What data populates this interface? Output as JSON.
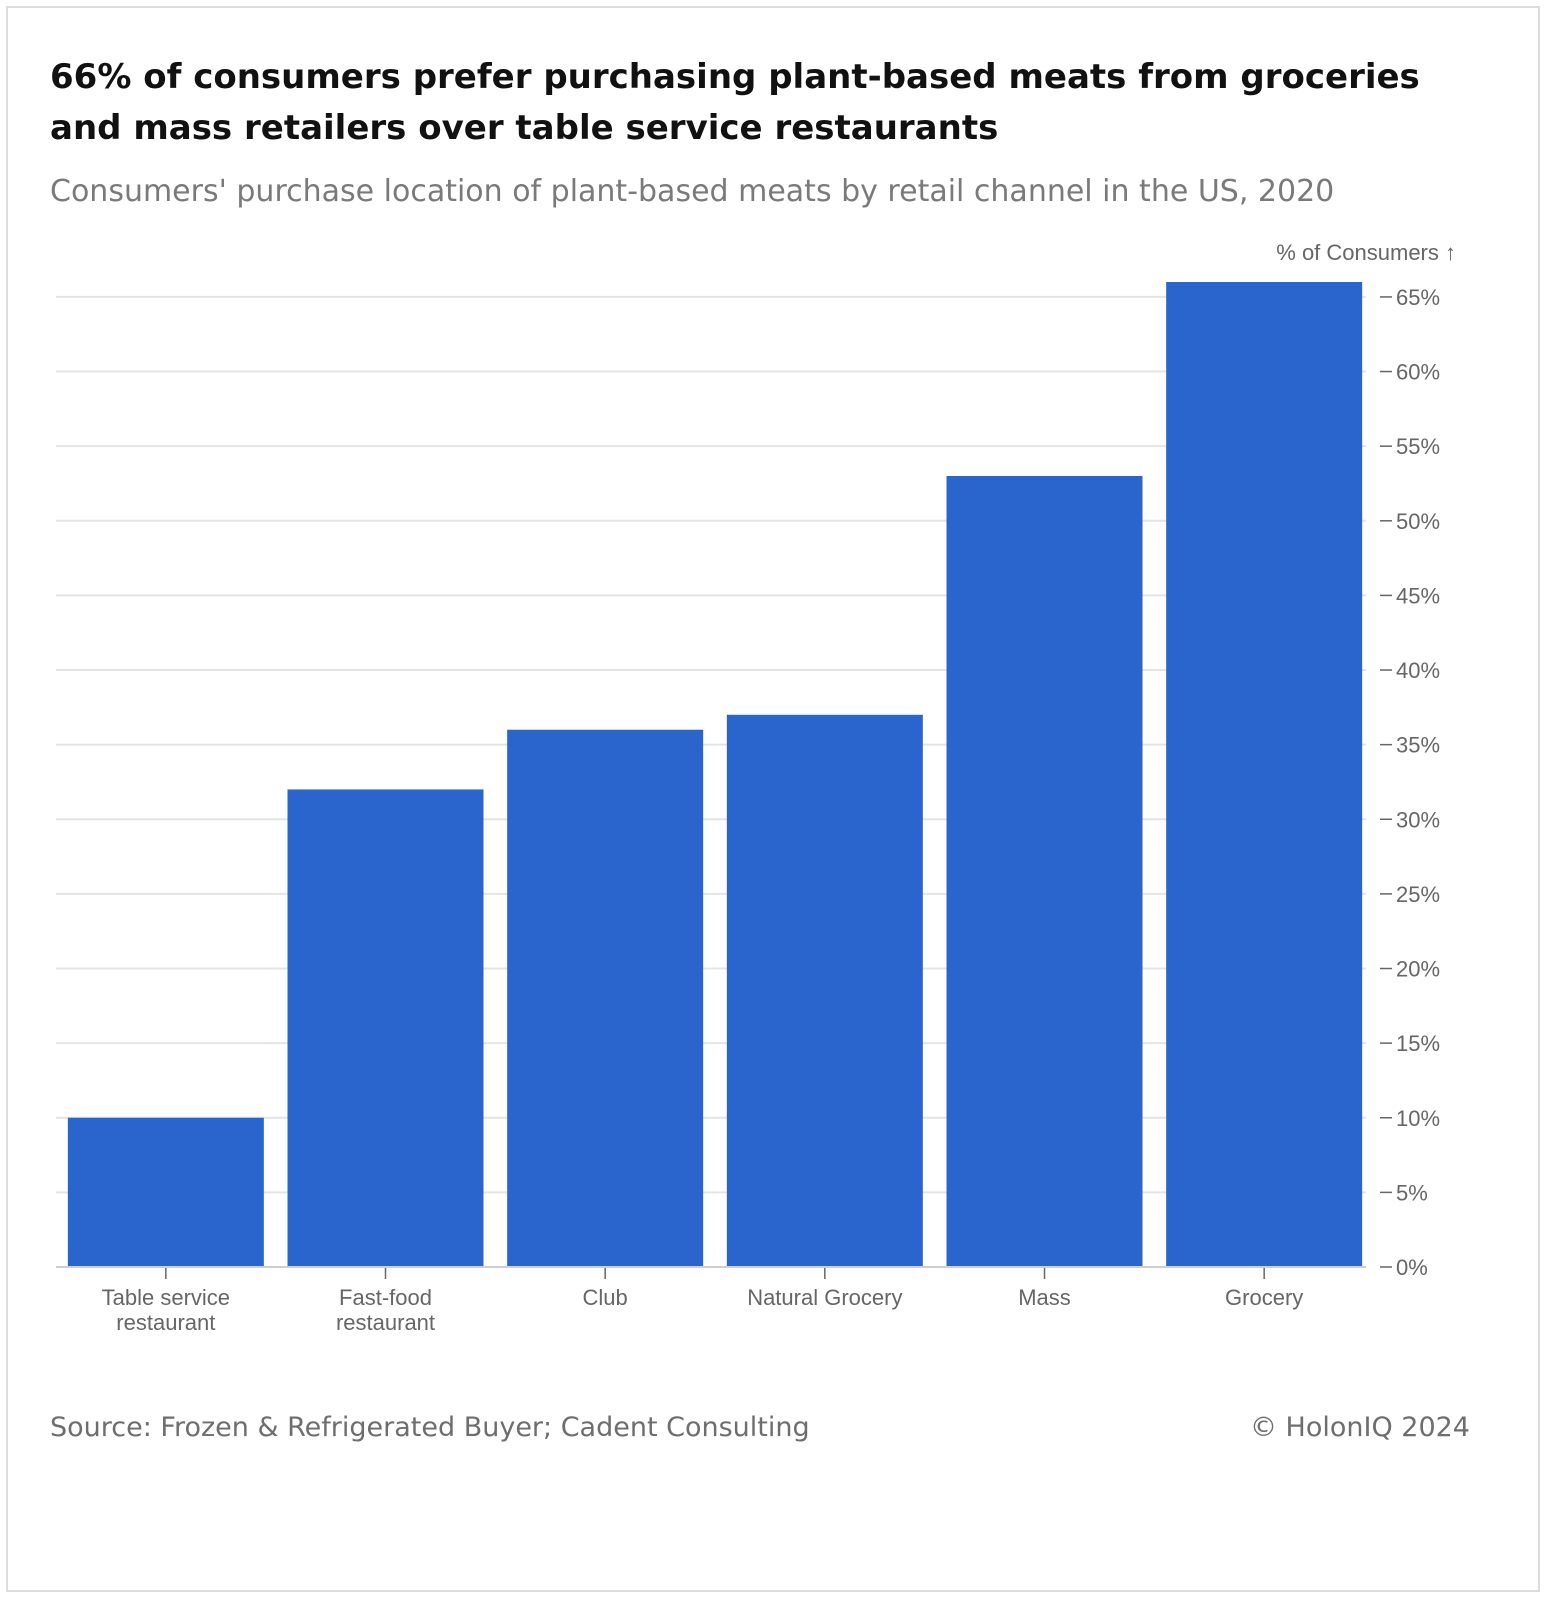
{
  "header": {
    "title": "66% of consumers prefer purchasing plant-based meats from groceries and mass retailers over table service restaurants",
    "subtitle": "Consumers' purchase location of plant-based meats by retail channel in the US, 2020"
  },
  "footer": {
    "source": "Source: Frozen & Refrigerated Buyer; Cadent Consulting",
    "copyright": "© HolonIQ 2024"
  },
  "colors": {
    "bar": "#2965cc",
    "grid": "#e4e4e4",
    "axis_text": "#666666"
  },
  "chart_data": {
    "type": "bar",
    "title": "66% of consumers prefer purchasing plant-based meats from groceries and mass retailers over table service restaurants",
    "subtitle": "Consumers' purchase location of plant-based meats by retail channel in the US, 2020",
    "ylabel": "% of Consumers ↑",
    "xlabel": "",
    "categories": [
      [
        "Table service",
        "restaurant"
      ],
      [
        "Fast-food",
        "restaurant"
      ],
      [
        "Club"
      ],
      [
        "Natural Grocery"
      ],
      [
        "Mass"
      ],
      [
        "Grocery"
      ]
    ],
    "values": [
      10,
      32,
      36,
      37,
      53,
      66
    ],
    "ylim": [
      0,
      66
    ],
    "yticks": [
      0,
      5,
      10,
      15,
      20,
      25,
      30,
      35,
      40,
      45,
      50,
      55,
      60,
      65
    ],
    "ytick_labels": [
      "0%",
      "5%",
      "10%",
      "15%",
      "20%",
      "25%",
      "30%",
      "35%",
      "40%",
      "45%",
      "50%",
      "55%",
      "60%",
      "65%"
    ],
    "y_axis_side": "right",
    "grid": true,
    "legend": "none"
  }
}
